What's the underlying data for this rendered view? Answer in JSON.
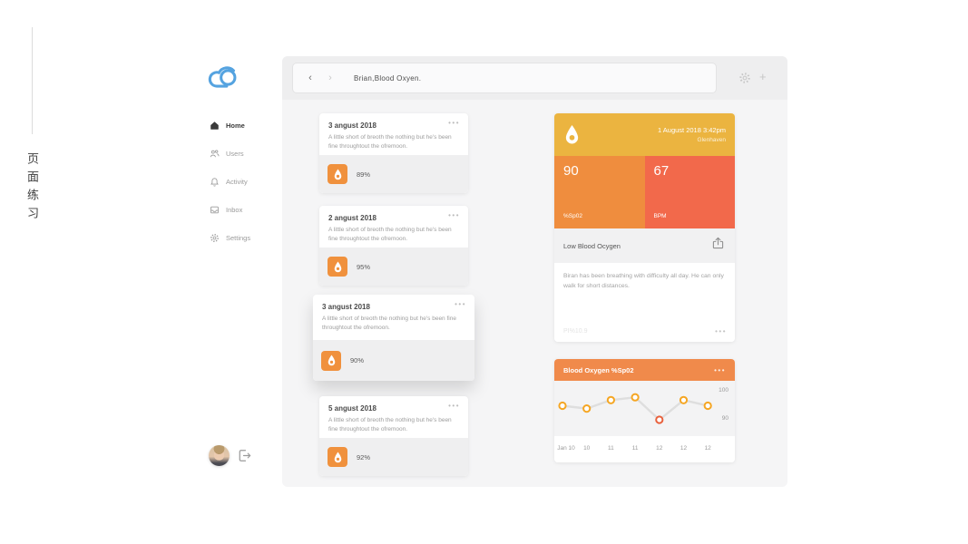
{
  "deco": {
    "vertical_text": "页面练习"
  },
  "colors": {
    "brand_blue": "#55A3E0",
    "amber": "#EBB440",
    "orange": "#EF8D3E",
    "deep_orange": "#F2694B",
    "badge_orange": "#F0913D",
    "chart_header_orange": "#F08A4B",
    "chart_point": "#F5A623",
    "chart_point_low": "#E8603C",
    "chart_line": "#DEDEDE"
  },
  "icons": {
    "back": "‹",
    "forward": "›",
    "plus": "+",
    "menu_dots": "•••"
  },
  "header": {
    "search_title": "Brian,Blood Oxyen."
  },
  "sidebar": {
    "items": [
      {
        "label": "Home",
        "active": true
      },
      {
        "label": "Users",
        "active": false
      },
      {
        "label": "Activity",
        "active": false
      },
      {
        "label": "Inbox",
        "active": false
      },
      {
        "label": "Settings",
        "active": false
      }
    ]
  },
  "cards": [
    {
      "date": "3 angust 2018",
      "note": "A little short of breoth the nothing but he's been fine throughtout the ofremoon.",
      "value": "89%"
    },
    {
      "date": "2 angust 2018",
      "note": "A little short of breoth the nothing but he's been fine throughtout the ofremoon.",
      "value": "95%"
    },
    {
      "date": "3 angust 2018",
      "note": "A little short of breoth the nothing but he's been fine throughtout the ofremoon.",
      "value": "90%",
      "elevated": true
    },
    {
      "date": "5 angust 2018",
      "note": "A little short of breoth the nothing but he's been fine throughtout the ofremoon.",
      "value": "92%"
    }
  ],
  "detail_card": {
    "datetime": "1 August 2018 3:42pm",
    "location": "Glenhaven",
    "spo2_value": "90",
    "spo2_label": "%Sp02",
    "bpm_value": "67",
    "bpm_label": "BPM",
    "alert": "Low Blood Ocygen",
    "note": "Biran has been breathing with difficulty all day. He can only walk for short distances.",
    "footer": "PI%10.9"
  },
  "chart_data": {
    "type": "line",
    "title": "Blood Oxygen %Sp02",
    "x_labels": [
      "Jan 10",
      "10",
      "11",
      "11",
      "12",
      "12",
      "12"
    ],
    "values": [
      95,
      94,
      97,
      98,
      90,
      97,
      95
    ],
    "y_ticks": [
      100,
      90
    ],
    "ylim": [
      88,
      102
    ],
    "highlight_index": 4,
    "legend": "none",
    "grid": false
  }
}
